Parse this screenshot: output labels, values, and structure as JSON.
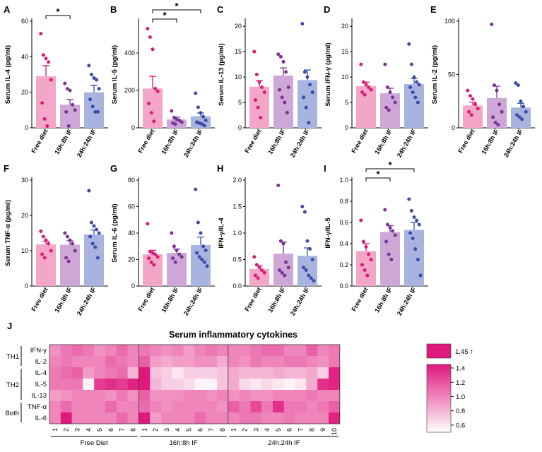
{
  "chart_data": {
    "panels": [
      {
        "id": "A",
        "type": "bar",
        "ylabel": "Serum IL-4 (pg/ml)",
        "ylim": [
          0,
          60
        ],
        "yticks": [
          0,
          20,
          40,
          60
        ],
        "categories": [
          "Free diet",
          "16h:8h IF",
          "24h:24h IF"
        ],
        "means": [
          29,
          13,
          20
        ],
        "sems": [
          6,
          3,
          4
        ],
        "points": [
          [
            53,
            41,
            39,
            37,
            27,
            14,
            5,
            1
          ],
          [
            25,
            22,
            21,
            13,
            10,
            9,
            1
          ],
          [
            35,
            30,
            28,
            27,
            22,
            16,
            12,
            9,
            9
          ]
        ],
        "significance": [
          {
            "from": 0,
            "to": 1,
            "label": "*"
          }
        ]
      },
      {
        "id": "B",
        "type": "bar",
        "ylabel": "Serum IL-5 (pg/ml)",
        "ylim": [
          0,
          570
        ],
        "yticks": [
          0,
          200,
          400
        ],
        "categories": [
          "Free diet",
          "16h:8h IF",
          "24h:24h IF"
        ],
        "means": [
          210,
          45,
          62
        ],
        "sems": [
          65,
          12,
          17
        ],
        "points": [
          [
            530,
            485,
            420,
            210,
            195,
            130,
            80,
            35
          ],
          [
            90,
            55,
            45,
            40,
            30,
            25,
            20
          ],
          [
            185,
            110,
            80,
            60,
            40,
            30,
            25,
            20,
            12
          ]
        ],
        "significance": [
          {
            "from": 0,
            "to": 1,
            "label": "*"
          },
          {
            "from": 0,
            "to": 2,
            "label": "*"
          }
        ]
      },
      {
        "id": "C",
        "type": "bar",
        "ylabel": "Serum IL-13 (pg/ml)",
        "ylim": [
          0,
          21
        ],
        "yticks": [
          0,
          5,
          10,
          15,
          20
        ],
        "categories": [
          "Free diet",
          "16h:8h IF",
          "24h:24h IF"
        ],
        "means": [
          8.1,
          10.3,
          9.4
        ],
        "sems": [
          1.2,
          1.5,
          2.0
        ],
        "points": [
          [
            15,
            10.5,
            9,
            8,
            7,
            5.5,
            4,
            2
          ],
          [
            14.5,
            14,
            13,
            11,
            8,
            7.5,
            6,
            5,
            3
          ],
          [
            20.5,
            11,
            10,
            8.5,
            7,
            6,
            4,
            1
          ]
        ],
        "significance": []
      },
      {
        "id": "D",
        "type": "bar",
        "ylabel": "Serum IFN-γ (pg/ml)",
        "ylim": [
          0,
          21
        ],
        "yticks": [
          0,
          5,
          10,
          15,
          20
        ],
        "categories": [
          "Free diet",
          "16h:8h IF",
          "24h:24h IF"
        ],
        "means": [
          8.2,
          6.8,
          8.6
        ],
        "sems": [
          0.8,
          1.0,
          1.1
        ],
        "points": [
          [
            12.5,
            9,
            8.5,
            8,
            7.5,
            7,
            6.5
          ],
          [
            12.5,
            8,
            7,
            6,
            5,
            4,
            3.5
          ],
          [
            16.5,
            12.5,
            10,
            9,
            8.5,
            8,
            7,
            6,
            5
          ]
        ],
        "significance": []
      },
      {
        "id": "E",
        "type": "bar",
        "ylabel": "Serum IL-2 (pg/ml)",
        "ylim": [
          0,
          100
        ],
        "yticks": [
          0,
          50,
          100
        ],
        "categories": [
          "Free diet",
          "16h:8h IF",
          "24h:24h IF"
        ],
        "means": [
          21,
          28,
          19
        ],
        "sems": [
          3,
          11,
          4
        ],
        "points": [
          [
            35,
            30,
            27,
            22,
            18,
            15,
            12
          ],
          [
            97,
            40,
            35,
            22,
            15,
            10,
            5,
            3
          ],
          [
            42,
            40,
            25,
            20,
            15,
            12,
            10,
            8
          ]
        ],
        "significance": []
      },
      {
        "id": "F",
        "type": "bar",
        "ylabel": "Serum TNF-α (pg/ml)",
        "ylim": [
          0,
          30
        ],
        "yticks": [
          0,
          10,
          20,
          30
        ],
        "categories": [
          "Free diet",
          "16h:8h IF",
          "24h:24h IF"
        ],
        "means": [
          11.8,
          11.7,
          14.6
        ],
        "sems": [
          0.9,
          1.1,
          1.3
        ],
        "points": [
          [
            15.5,
            14,
            13,
            12,
            10,
            9,
            8
          ],
          [
            15,
            14,
            13,
            12,
            10,
            8,
            7
          ],
          [
            27,
            18,
            17,
            16,
            15,
            14,
            12,
            11,
            8
          ]
        ],
        "significance": []
      },
      {
        "id": "G",
        "type": "bar",
        "ylabel": "Serum IL-6 (pg/ml)",
        "ylim": [
          0,
          80
        ],
        "yticks": [
          0,
          20,
          40,
          60,
          80
        ],
        "categories": [
          "Free diet",
          "16h:8h IF",
          "24h:24h IF"
        ],
        "means": [
          24,
          25,
          31
        ],
        "sems": [
          3,
          3,
          6
        ],
        "points": [
          [
            47,
            26,
            25,
            24,
            22,
            21,
            18,
            16
          ],
          [
            40,
            30,
            27,
            24,
            22,
            21,
            18
          ],
          [
            73,
            48,
            40,
            30,
            27,
            25,
            22,
            20,
            18,
            15
          ]
        ],
        "significance": []
      },
      {
        "id": "H",
        "type": "bar",
        "ylabel": "IFN-γ/IL-4",
        "ylim": [
          0,
          2.0
        ],
        "yticks": [
          "0.0",
          "0.5",
          "1.0",
          "1.5",
          "2.0"
        ],
        "categories": [
          "Free diet",
          "16h:8h IF",
          "24h:24h IF"
        ],
        "means": [
          0.32,
          0.61,
          0.57
        ],
        "sems": [
          0.06,
          0.22,
          0.15
        ],
        "points": [
          [
            0.55,
            0.4,
            0.35,
            0.3,
            0.25,
            0.2,
            0.15
          ],
          [
            1.9,
            0.85,
            0.8,
            0.45,
            0.35,
            0.3,
            0.25,
            0.2
          ],
          [
            1.5,
            1.4,
            0.85,
            0.7,
            0.5,
            0.35,
            0.3,
            0.2,
            0.15,
            0.1
          ]
        ],
        "significance": []
      },
      {
        "id": "I",
        "type": "bar",
        "ylabel": "IFN-γ/IL-5",
        "ylim": [
          0,
          1.0
        ],
        "yticks": [
          "0.0",
          "0.2",
          "0.4",
          "0.6",
          "0.8",
          "1.0"
        ],
        "categories": [
          "Free diet",
          "16h:8h IF",
          "24h:24h IF"
        ],
        "means": [
          0.33,
          0.51,
          0.53
        ],
        "sems": [
          0.07,
          0.06,
          0.07
        ],
        "points": [
          [
            0.62,
            0.42,
            0.37,
            0.3,
            0.25,
            0.2,
            0.15,
            0.1
          ],
          [
            0.72,
            0.58,
            0.55,
            0.52,
            0.48,
            0.42,
            0.3,
            0.25
          ],
          [
            0.82,
            0.71,
            0.65,
            0.62,
            0.58,
            0.5,
            0.45,
            0.35,
            0.25,
            0.1
          ]
        ],
        "significance": [
          {
            "from": 0,
            "to": 1,
            "label": "*"
          },
          {
            "from": 0,
            "to": 2,
            "label": "*"
          }
        ]
      }
    ],
    "heatmap": {
      "panel": "J",
      "type": "heatmap",
      "title": "Serum inflammatory cytokines",
      "rows": [
        "IFN-γ",
        "IL-2",
        "IL-4",
        "IL-5",
        "IL-13",
        "TNF-α",
        "IL-6"
      ],
      "row_groups": [
        {
          "label": "TH1",
          "rows": [
            0,
            1
          ]
        },
        {
          "label": "TH2",
          "rows": [
            2,
            4
          ]
        },
        {
          "label": "Both",
          "rows": [
            5,
            6
          ]
        }
      ],
      "groups": [
        {
          "label": "Free Diet",
          "columns": [
            "1",
            "2",
            "3",
            "4",
            "5",
            "6",
            "7",
            "8"
          ]
        },
        {
          "label": "16h:8h IF",
          "columns": [
            "1",
            "2",
            "3",
            "4",
            "5",
            "6",
            "7",
            "8"
          ]
        },
        {
          "label": "24h:24h IF",
          "columns": [
            "1",
            "2",
            "3",
            "4",
            "5",
            "6",
            "7",
            "8",
            "9",
            "10"
          ]
        }
      ],
      "values": [
        [
          0.95,
          1.05,
          1.1,
          1.05,
          0.95,
          1.0,
          1.1,
          1.0,
          1.05,
          1.0,
          0.95,
          1.0,
          0.9,
          1.0,
          1.05,
          1.0,
          1.0,
          1.0,
          1.05,
          1.1,
          1.1,
          1.0,
          1.0,
          1.15,
          1.0,
          1.05
        ],
        [
          1.0,
          1.05,
          1.0,
          1.0,
          1.0,
          1.1,
          1.05,
          1.0,
          1.15,
          0.9,
          0.85,
          0.9,
          0.9,
          0.95,
          0.95,
          0.85,
          1.0,
          0.95,
          1.05,
          1.0,
          1.0,
          1.05,
          1.05,
          1.0,
          0.95,
          1.05
        ],
        [
          1.05,
          1.1,
          1.15,
          0.9,
          1.0,
          1.05,
          1.1,
          0.8,
          1.45,
          0.75,
          0.7,
          0.6,
          0.7,
          0.7,
          0.7,
          0.75,
          0.85,
          0.8,
          0.8,
          0.8,
          0.85,
          0.8,
          0.8,
          0.85,
          0.7,
          1.4
        ],
        [
          1.05,
          1.05,
          1.05,
          0.55,
          1.3,
          1.35,
          1.3,
          1.4,
          1.45,
          0.8,
          0.7,
          0.7,
          0.65,
          0.55,
          0.55,
          0.75,
          0.85,
          0.65,
          0.6,
          0.65,
          0.6,
          0.55,
          0.6,
          0.85,
          1.35,
          1.4
        ],
        [
          0.9,
          0.95,
          1.0,
          1.0,
          1.0,
          0.95,
          1.05,
          0.95,
          1.15,
          0.95,
          0.95,
          0.95,
          1.0,
          1.0,
          0.95,
          1.0,
          0.95,
          1.0,
          0.95,
          0.95,
          1.0,
          1.0,
          1.0,
          1.05,
          1.0,
          1.0
        ],
        [
          1.0,
          1.1,
          1.0,
          1.0,
          1.0,
          1.1,
          1.0,
          1.0,
          1.1,
          1.0,
          0.95,
          1.0,
          1.0,
          1.0,
          1.0,
          0.95,
          1.15,
          1.05,
          1.25,
          1.05,
          1.35,
          1.05,
          1.05,
          1.0,
          1.05,
          1.15
        ],
        [
          1.0,
          1.45,
          1.0,
          1.0,
          1.0,
          1.0,
          1.1,
          1.0,
          1.45,
          0.9,
          1.0,
          1.0,
          1.0,
          1.1,
          1.0,
          1.0,
          1.0,
          1.05,
          1.05,
          1.0,
          1.0,
          1.05,
          1.0,
          1.0,
          1.0,
          1.4
        ]
      ],
      "colorbar": {
        "over_label": "1.45 ↑",
        "ticks": [
          "1.4",
          "1.2",
          "1.0",
          "0.8",
          "0.6"
        ],
        "range": [
          0.5,
          1.45
        ],
        "low_color": "#ffffff",
        "high_color": "#e0177d"
      }
    },
    "colors": {
      "free_bar": "#f4a6c8",
      "free_dot": "#d81b74",
      "free_err": "#d81b74",
      "if16_bar": "#cda8d6",
      "if16_dot": "#7b3294",
      "if16_err": "#7b3294",
      "if24_bar": "#a9b3df",
      "if24_dot": "#3a4ba8",
      "if24_err": "#3a4ba8"
    }
  }
}
